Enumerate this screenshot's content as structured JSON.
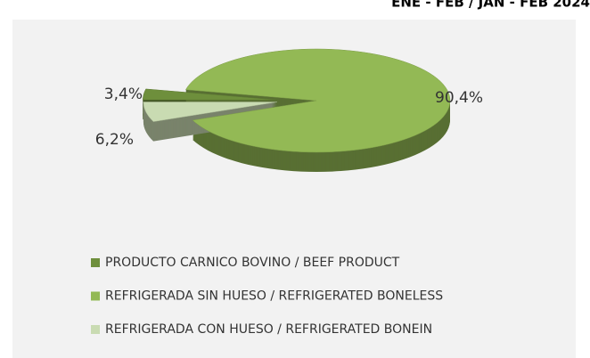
{
  "chart_data": {
    "type": "pie",
    "title": "ENE - FEB / JAN - FEB 2024",
    "categories": [
      "PRODUCTO CARNICO BOVINO / BEEF PRODUCT",
      "REFRIGERADA SIN HUESO / REFRIGERATED BONELESS",
      "REFRIGERADA CON HUESO / REFRIGERATED BONEIN"
    ],
    "values": [
      3.4,
      90.4,
      6.2
    ],
    "value_labels": [
      "3,4%",
      "90,4%",
      "6,2%"
    ],
    "colors": [
      "#6e8f3c",
      "#93b955",
      "#c9dbb2"
    ],
    "legend": "bottom"
  }
}
